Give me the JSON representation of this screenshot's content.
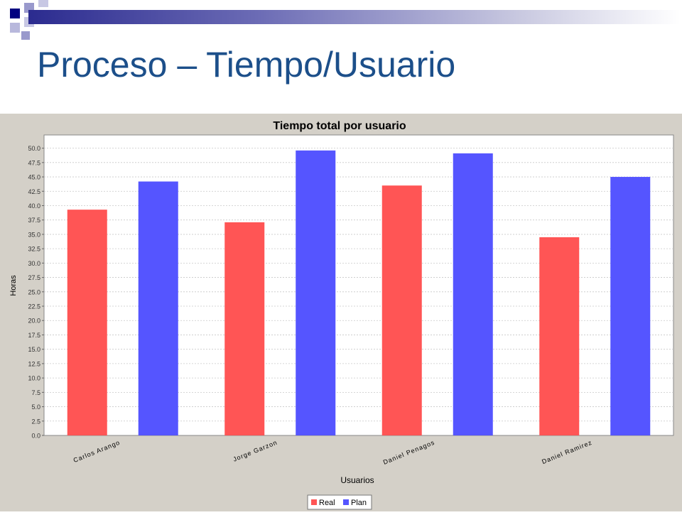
{
  "slide": {
    "title": "Proceso – Tiempo/Usuario"
  },
  "colors": {
    "accent_dark": "#000080",
    "accent_light": "#9999cc",
    "title": "#1c4f8a",
    "real": "#ff5555",
    "plan": "#5555ff",
    "chart_background": "#d4d0c8"
  },
  "chart_data": {
    "type": "bar",
    "title": "Tiempo total por usuario",
    "xlabel": "Usuarios",
    "ylabel": "Horas",
    "categories": [
      "Carlos Arango",
      "Jorge Garzon",
      "Daniel Penagos",
      "Daniel Ramirez"
    ],
    "series": [
      {
        "name": "Real",
        "color": "#ff5555",
        "values": [
          39.3,
          37.1,
          43.5,
          34.5
        ]
      },
      {
        "name": "Plan",
        "color": "#5555ff",
        "values": [
          44.2,
          49.6,
          49.1,
          45.0
        ]
      }
    ],
    "ylim": [
      0,
      52.3
    ],
    "yticks": [
      "0.0",
      "2.5",
      "5.0",
      "7.5",
      "10.0",
      "12.5",
      "15.0",
      "17.5",
      "20.0",
      "22.5",
      "25.0",
      "27.5",
      "30.0",
      "32.5",
      "35.0",
      "37.5",
      "40.0",
      "42.5",
      "45.0",
      "47.5",
      "50.0"
    ],
    "grid": true,
    "legend_position": "bottom"
  }
}
